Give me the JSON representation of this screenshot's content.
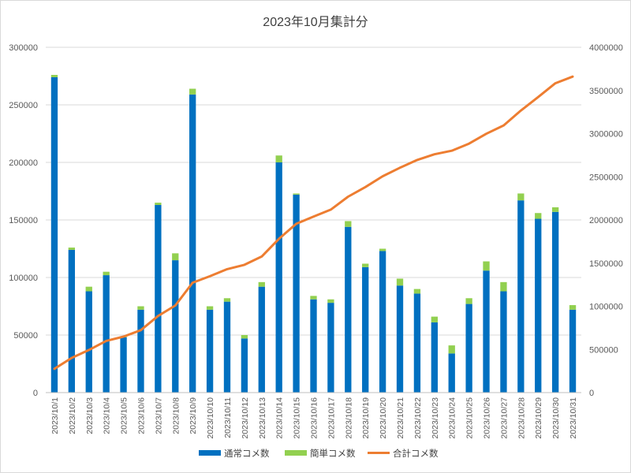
{
  "colors": {
    "normal": "#0070C0",
    "simple": "#92D050",
    "total": "#ED7D31",
    "grid": "#d9d9d9"
  },
  "chart_data": {
    "type": "bar",
    "title": "2023年10月集計分",
    "categories": [
      "2023/10/1",
      "2023/10/2",
      "2023/10/3",
      "2023/10/4",
      "2023/10/5",
      "2023/10/6",
      "2023/10/7",
      "2023/10/8",
      "2023/10/9",
      "2023/10/10",
      "2023/10/11",
      "2023/10/12",
      "2023/10/13",
      "2023/10/14",
      "2023/10/15",
      "2023/10/16",
      "2023/10/17",
      "2023/10/18",
      "2023/10/19",
      "2023/10/20",
      "2023/10/21",
      "2023/10/22",
      "2023/10/23",
      "2023/10/24",
      "2023/10/25",
      "2023/10/26",
      "2023/10/27",
      "2023/10/28",
      "2023/10/29",
      "2023/10/30",
      "2023/10/31"
    ],
    "stacked": true,
    "series": [
      {
        "name": "通常コメ数",
        "type": "bar",
        "axis": "left",
        "values": [
          274000,
          124000,
          88000,
          102000,
          48000,
          72000,
          163000,
          115000,
          259000,
          72000,
          79000,
          47000,
          92000,
          200000,
          172000,
          81000,
          78000,
          144000,
          109000,
          123000,
          93000,
          86000,
          61000,
          34000,
          77000,
          106000,
          88000,
          167000,
          151000,
          157000,
          72000
        ]
      },
      {
        "name": "簡単コメ数",
        "type": "bar",
        "axis": "left",
        "values": [
          2000,
          2000,
          4000,
          3000,
          1000,
          3000,
          2000,
          6000,
          5000,
          3000,
          3000,
          3000,
          4000,
          6000,
          1000,
          3000,
          3000,
          5000,
          3000,
          2000,
          6000,
          4000,
          5000,
          7000,
          5000,
          8000,
          8000,
          6000,
          5000,
          4000,
          4000
        ]
      },
      {
        "name": "合計コメ数",
        "type": "line",
        "axis": "right",
        "values": [
          276000,
          402000,
          494000,
          599000,
          648000,
          723000,
          888000,
          1009000,
          1273000,
          1348000,
          1430000,
          1480000,
          1576000,
          1782000,
          1955000,
          2039000,
          2120000,
          2269000,
          2381000,
          2506000,
          2605000,
          2695000,
          2761000,
          2802000,
          2884000,
          2998000,
          3094000,
          3267000,
          3423000,
          3584000,
          3660000
        ]
      }
    ],
    "y_left": {
      "min": 0,
      "max": 300000,
      "ticks": [
        "0",
        "50000",
        "100000",
        "150000",
        "200000",
        "250000",
        "300000"
      ],
      "tick_values": [
        0,
        50000,
        100000,
        150000,
        200000,
        250000,
        300000
      ]
    },
    "y_right": {
      "min": 0,
      "max": 4000000,
      "ticks": [
        "0",
        "500000",
        "1000000",
        "1500000",
        "2000000",
        "2500000",
        "3000000",
        "3500000",
        "4000000"
      ],
      "tick_values": [
        0,
        500000,
        1000000,
        1500000,
        2000000,
        2500000,
        3000000,
        3500000,
        4000000
      ]
    },
    "grid": true,
    "legend": {
      "position": "bottom",
      "items": [
        "通常コメ数",
        "簡単コメ数",
        "合計コメ数"
      ]
    }
  }
}
